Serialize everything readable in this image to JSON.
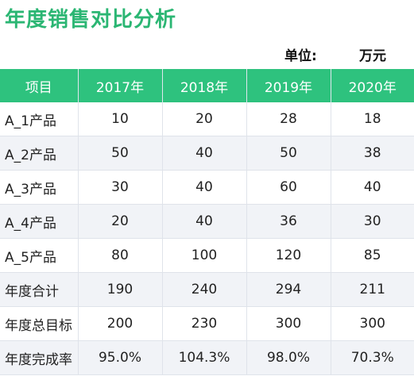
{
  "title": "年度销售对比分析",
  "unit": {
    "label": "单位:",
    "value": "万元"
  },
  "table": {
    "headers": [
      "项目",
      "2017年",
      "2018年",
      "2019年",
      "2020年"
    ],
    "rows": [
      [
        "A_1产品",
        "10",
        "20",
        "28",
        "18"
      ],
      [
        "A_2产品",
        "50",
        "40",
        "50",
        "38"
      ],
      [
        "A_3产品",
        "30",
        "40",
        "60",
        "40"
      ],
      [
        "A_4产品",
        "20",
        "40",
        "36",
        "30"
      ],
      [
        "A_5产品",
        "80",
        "100",
        "120",
        "85"
      ],
      [
        "年度合计",
        "190",
        "240",
        "294",
        "211"
      ],
      [
        "年度总目标",
        "200",
        "230",
        "300",
        "300"
      ],
      [
        "年度完成率",
        "95.0%",
        "104.3%",
        "98.0%",
        "70.3%"
      ]
    ]
  },
  "colors": {
    "accent": "#2ec27e",
    "title": "#2bb673",
    "row_alt": "#f1f3f7"
  }
}
